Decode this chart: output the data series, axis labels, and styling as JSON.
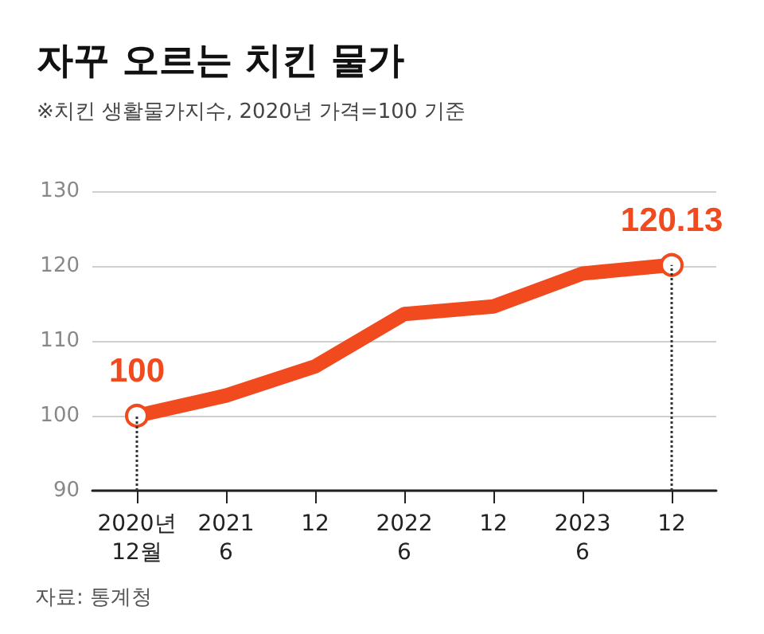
{
  "chart_data": {
    "type": "line",
    "title": "자꾸 오르는 치킨 물가",
    "subtitle": "※치킨 생활물가지수, 2020년 가격=100 기준",
    "categories": [
      "2020년\n12월",
      "2021\n6",
      "12",
      "2022\n6",
      "12",
      "2023\n6",
      "12"
    ],
    "series": [
      {
        "color": "#f04a1e",
        "values": [
          100,
          102.7,
          106.6,
          113.6,
          114.6,
          119.0,
          120.13
        ],
        "value_labels": [
          "100",
          null,
          null,
          null,
          null,
          null,
          "120.13"
        ]
      }
    ],
    "ylim": [
      90,
      130
    ],
    "yticks": [
      90,
      100,
      110,
      120,
      130
    ],
    "grid": "y",
    "line_style": "solid",
    "annotations": [
      "자료: 통계청"
    ]
  }
}
